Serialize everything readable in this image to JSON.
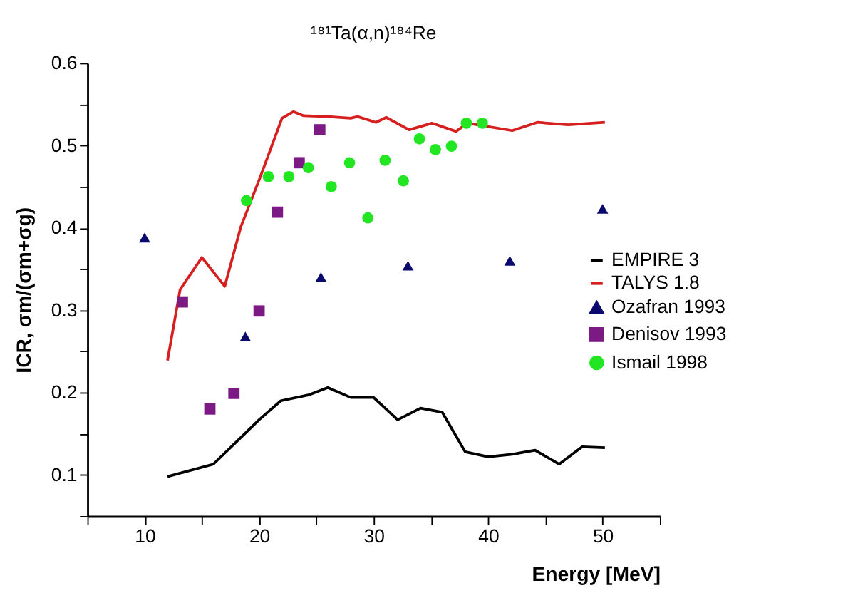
{
  "chart_data": {
    "type": "scatter",
    "title": "¹⁸¹Ta(α,n)¹⁸⁴Re",
    "xlabel": "Energy [MeV]",
    "ylabel": "ICR, σm/(σm+σg)",
    "xlim": [
      5,
      55
    ],
    "ylim": [
      0.05,
      0.6
    ],
    "xticks": [
      {
        "value": 5,
        "label": null
      },
      10,
      {
        "value": 15,
        "label": null
      },
      20,
      {
        "value": 25,
        "label": null
      },
      30,
      {
        "value": 35,
        "label": null
      },
      40,
      {
        "value": 45,
        "label": null
      },
      50,
      {
        "value": 55,
        "label": null
      }
    ],
    "yticks": [
      {
        "value": 0.05,
        "label": null
      },
      0.1,
      {
        "value": 0.15,
        "label": null
      },
      0.2,
      {
        "value": 0.25,
        "label": null
      },
      0.3,
      {
        "value": 0.35,
        "label": null
      },
      0.4,
      {
        "value": 0.45,
        "label": null
      },
      0.5,
      {
        "value": 0.55,
        "label": null
      },
      0.6
    ],
    "grid": false,
    "legend": "right",
    "series": [
      {
        "name": "EMPIRE 3",
        "type": "line",
        "color": "#000000",
        "x": [
          12.0,
          16.0,
          18.0,
          20.0,
          21.9,
          24.3,
          26.0,
          28.0,
          30.0,
          32.1,
          34.1,
          36.0,
          38.0,
          40.0,
          42.1,
          44.1,
          46.2,
          48.2,
          50.2
        ],
        "values": [
          0.098,
          0.113,
          0.14,
          0.167,
          0.19,
          0.197,
          0.206,
          0.194,
          0.194,
          0.167,
          0.181,
          0.176,
          0.128,
          0.122,
          0.125,
          0.13,
          0.113,
          0.134,
          0.133
        ]
      },
      {
        "name": "TALYS 1.8",
        "type": "line",
        "color": "#d62020",
        "x": [
          12.0,
          13.1,
          15.0,
          17.0,
          18.4,
          20.0,
          22.0,
          23.0,
          23.9,
          26.0,
          28.0,
          28.6,
          30.2,
          31.1,
          33.1,
          35.1,
          37.2,
          38.2,
          42.1,
          44.3,
          47.0,
          50.2
        ],
        "values": [
          0.239,
          0.325,
          0.364,
          0.329,
          0.401,
          0.458,
          0.533,
          0.541,
          0.536,
          0.535,
          0.533,
          0.535,
          0.528,
          0.534,
          0.519,
          0.527,
          0.517,
          0.527,
          0.518,
          0.528,
          0.525,
          0.528
        ]
      },
      {
        "name": "Ozafran 1993",
        "type": "scatter",
        "marker": "triangle",
        "color": "#0a0a6e",
        "x": [
          10.0,
          18.8,
          25.4,
          33.0,
          41.9,
          50.0
        ],
        "values": [
          0.388,
          0.268,
          0.34,
          0.354,
          0.36,
          0.423
        ]
      },
      {
        "name": "Denisov 1993",
        "type": "scatter",
        "marker": "square",
        "color": "#7a1a82",
        "x": [
          13.3,
          15.7,
          17.8,
          20.0,
          21.6,
          23.5,
          25.3
        ],
        "values": [
          0.31,
          0.18,
          0.199,
          0.299,
          0.419,
          0.479,
          0.519
        ]
      },
      {
        "name": "Ismail 1998",
        "type": "scatter",
        "marker": "circle",
        "color": "#22e622",
        "x": [
          18.9,
          20.8,
          22.6,
          24.3,
          26.3,
          27.9,
          29.5,
          31.0,
          32.6,
          34.0,
          35.4,
          36.8,
          38.1,
          39.5
        ],
        "values": [
          0.433,
          0.462,
          0.462,
          0.473,
          0.45,
          0.479,
          0.412,
          0.482,
          0.457,
          0.508,
          0.495,
          0.499,
          0.527,
          0.527
        ]
      }
    ]
  }
}
